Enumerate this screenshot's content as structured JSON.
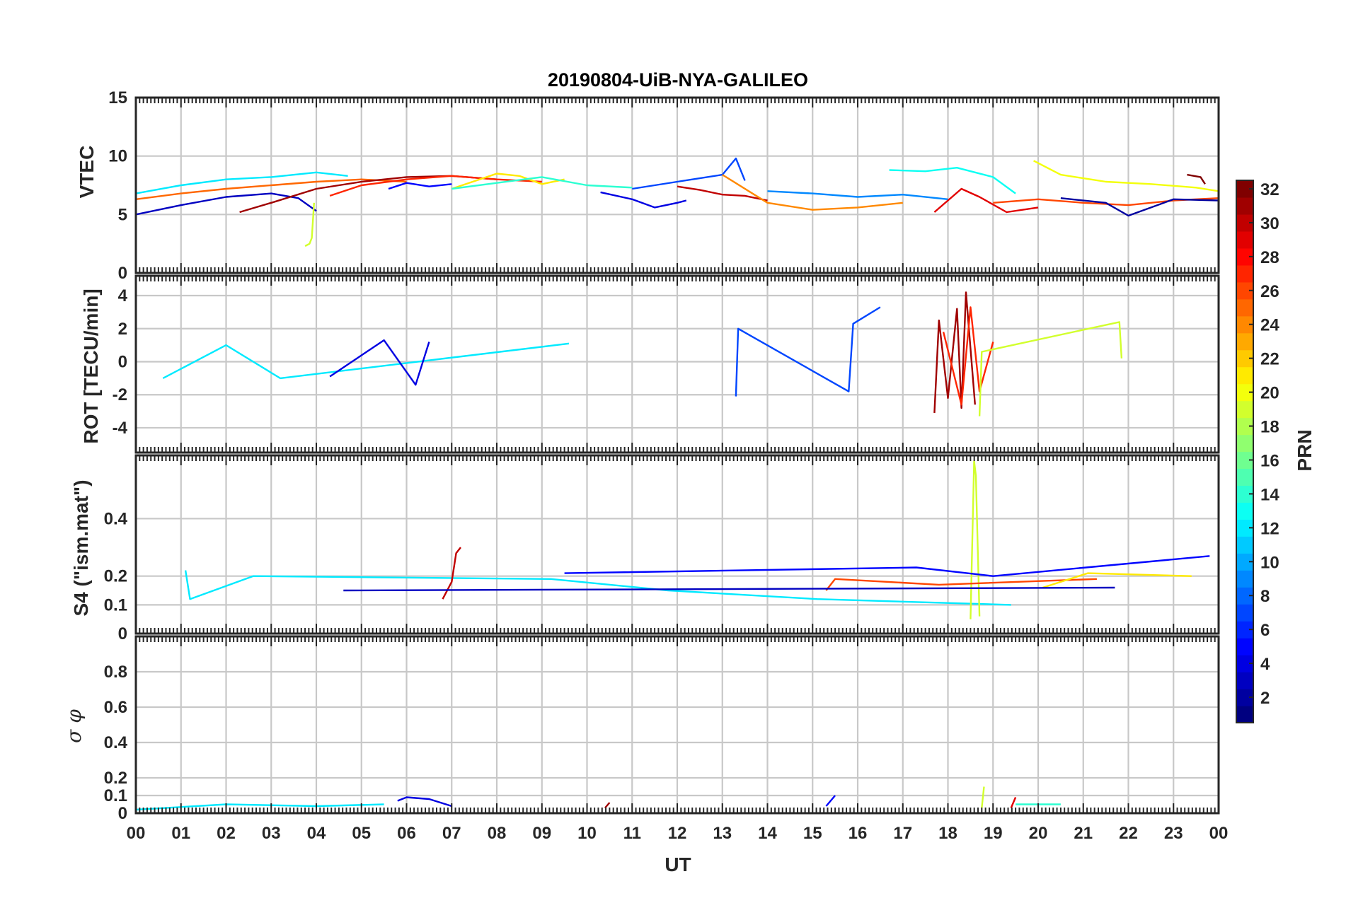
{
  "chart_data": {
    "type": "line",
    "title": "20190804-UiB-NYA-GALILEO",
    "xlabel": "UT",
    "x_tick_labels": [
      "00",
      "01",
      "02",
      "03",
      "04",
      "05",
      "06",
      "07",
      "08",
      "09",
      "10",
      "11",
      "12",
      "13",
      "14",
      "15",
      "16",
      "17",
      "18",
      "19",
      "20",
      "21",
      "22",
      "23",
      "00"
    ],
    "xlim_hours": [
      0,
      24
    ],
    "colorbar": {
      "label": "PRN",
      "colormap": "jet",
      "range": [
        1,
        32
      ],
      "tick_labels": [
        "2",
        "4",
        "6",
        "8",
        "10",
        "12",
        "14",
        "16",
        "18",
        "20",
        "22",
        "24",
        "26",
        "28",
        "30",
        "32"
      ]
    },
    "panels": [
      {
        "name": "vtec",
        "ylabel": "VTEC",
        "ylim": [
          0,
          15
        ],
        "yticks": [
          0,
          5,
          10,
          15
        ],
        "ytick_labels": [
          "0",
          "5",
          "10",
          "15"
        ],
        "series": [
          {
            "prn": 3,
            "t": [
              0,
              1,
              2,
              3,
              3.6,
              4.0
            ],
            "y": [
              5.0,
              5.8,
              6.5,
              6.8,
              6.4,
              5.3
            ]
          },
          {
            "prn": 12,
            "t": [
              0,
              1,
              2,
              3,
              4,
              4.7
            ],
            "y": [
              6.8,
              7.5,
              8.0,
              8.2,
              8.6,
              8.3
            ]
          },
          {
            "prn": 25,
            "t": [
              0,
              1,
              2,
              3,
              4,
              5,
              6
            ],
            "y": [
              6.3,
              6.8,
              7.2,
              7.5,
              7.8,
              8.0,
              7.8
            ]
          },
          {
            "prn": 31,
            "t": [
              2.3,
              3,
              4,
              5,
              6,
              7,
              8
            ],
            "y": [
              5.2,
              6.0,
              7.2,
              7.8,
              8.2,
              8.3,
              8.0
            ]
          },
          {
            "prn": 19,
            "t": [
              3.75,
              3.85,
              3.9,
              3.95
            ],
            "y": [
              2.3,
              2.5,
              3.0,
              6.0
            ]
          },
          {
            "prn": 27,
            "t": [
              4.3,
              5,
              6,
              7,
              8,
              9
            ],
            "y": [
              6.6,
              7.5,
              8.0,
              8.3,
              8.0,
              7.8
            ]
          },
          {
            "prn": 5,
            "t": [
              5.6,
              6,
              6.5,
              7
            ],
            "y": [
              7.2,
              7.7,
              7.4,
              7.6
            ]
          },
          {
            "prn": 21,
            "t": [
              7,
              8,
              8.5,
              9,
              9.5
            ],
            "y": [
              7.2,
              8.5,
              8.3,
              7.6,
              8.0
            ]
          },
          {
            "prn": 14,
            "t": [
              7,
              8,
              9,
              10,
              11
            ],
            "y": [
              7.2,
              7.7,
              8.2,
              7.5,
              7.3
            ]
          },
          {
            "prn": 4,
            "t": [
              10.3,
              11,
              11.5,
              12,
              12.2
            ],
            "y": [
              6.9,
              6.3,
              5.6,
              6.0,
              6.2
            ]
          },
          {
            "prn": 7,
            "t": [
              11,
              12,
              13,
              13.3,
              13.5
            ],
            "y": [
              7.2,
              7.8,
              8.4,
              9.8,
              7.9
            ]
          },
          {
            "prn": 30,
            "t": [
              12,
              12.5,
              13,
              13.5,
              14
            ],
            "y": [
              7.4,
              7.1,
              6.7,
              6.6,
              6.2
            ]
          },
          {
            "prn": 24,
            "t": [
              13,
              14,
              15,
              16,
              17
            ],
            "y": [
              8.4,
              6.0,
              5.4,
              5.6,
              6.0
            ]
          },
          {
            "prn": 9,
            "t": [
              14,
              15,
              16,
              17,
              18
            ],
            "y": [
              7.0,
              6.8,
              6.5,
              6.7,
              6.3
            ]
          },
          {
            "prn": 13,
            "t": [
              16.7,
              17.5,
              18.2,
              19,
              19.5
            ],
            "y": [
              8.8,
              8.7,
              9.0,
              8.2,
              6.8
            ]
          },
          {
            "prn": 29,
            "t": [
              17.7,
              18.3,
              18.7,
              19.3,
              20
            ],
            "y": [
              5.2,
              7.2,
              6.5,
              5.2,
              5.6
            ]
          },
          {
            "prn": 20,
            "t": [
              19.9,
              20.5,
              21.5,
              22.5,
              23.5,
              24
            ],
            "y": [
              9.6,
              8.4,
              7.8,
              7.6,
              7.3,
              7.0
            ]
          },
          {
            "prn": 26,
            "t": [
              19,
              20,
              21,
              22,
              23,
              24
            ],
            "y": [
              6.0,
              6.3,
              6.0,
              5.8,
              6.2,
              6.4
            ]
          },
          {
            "prn": 2,
            "t": [
              20.5,
              21.5,
              22,
              23,
              24
            ],
            "y": [
              6.4,
              6.0,
              4.9,
              6.3,
              6.2
            ]
          },
          {
            "prn": 32,
            "t": [
              23.3,
              23.6,
              23.7
            ],
            "y": [
              8.4,
              8.2,
              7.6
            ]
          }
        ]
      },
      {
        "name": "rot",
        "ylabel": "ROT [TECU/min]",
        "ylim": [
          -5.5,
          5.2
        ],
        "yticks": [
          -4,
          -2,
          0,
          2,
          4
        ],
        "ytick_labels": [
          "-4",
          "-2",
          "0",
          "2",
          "4"
        ],
        "series": [
          {
            "prn": 31,
            "t": [
              17.7,
              17.8,
              18.0,
              18.2,
              18.3,
              18.4,
              18.6
            ],
            "y": [
              -3.1,
              2.5,
              -2.2,
              3.2,
              -2.8,
              4.2,
              -2.6
            ]
          },
          {
            "prn": 27,
            "t": [
              17.9,
              18.3,
              18.5,
              18.7,
              19.0
            ],
            "y": [
              1.8,
              -2.6,
              3.3,
              -1.8,
              1.2
            ]
          },
          {
            "prn": 19,
            "t": [
              18.7,
              18.75,
              21.8,
              21.85
            ],
            "y": [
              -3.3,
              0.6,
              2.4,
              0.2
            ]
          },
          {
            "prn": 7,
            "t": [
              13.3,
              13.35,
              15.8,
              15.9,
              16.5
            ],
            "y": [
              -2.1,
              2.0,
              -1.8,
              2.3,
              3.3
            ]
          },
          {
            "prn": 12,
            "t": [
              0.6,
              2.0,
              3.2,
              9.6
            ],
            "y": [
              -1.0,
              1.0,
              -1.0,
              1.1
            ]
          },
          {
            "prn": 4,
            "t": [
              4.3,
              5.5,
              6.2,
              6.5
            ],
            "y": [
              -0.9,
              1.3,
              -1.4,
              1.2
            ]
          }
        ]
      },
      {
        "name": "s4",
        "ylabel": "S4 (\"ism.mat\")",
        "ylim": [
          0,
          0.62
        ],
        "yticks": [
          0,
          0.1,
          0.2,
          0.4
        ],
        "ytick_labels": [
          "0",
          "0.1",
          "0.2",
          "0.4"
        ],
        "series": [
          {
            "prn": 12,
            "t": [
              1.1,
              1.2,
              2.6,
              9.2,
              11.8,
              15.1,
              19.4
            ],
            "y": [
              0.22,
              0.12,
              0.2,
              0.19,
              0.15,
              0.12,
              0.1
            ]
          },
          {
            "prn": 30,
            "t": [
              6.8,
              7.0,
              7.1,
              7.2
            ],
            "y": [
              0.12,
              0.18,
              0.28,
              0.3
            ]
          },
          {
            "prn": 19,
            "t": [
              18.5,
              18.58,
              18.62,
              18.7
            ],
            "y": [
              0.05,
              0.6,
              0.55,
              0.06
            ]
          },
          {
            "prn": 5,
            "t": [
              9.5,
              13.4,
              17.3,
              19.0,
              23.8
            ],
            "y": [
              0.21,
              0.22,
              0.23,
              0.2,
              0.27
            ]
          },
          {
            "prn": 26,
            "t": [
              15.3,
              15.5,
              17.8,
              21.3
            ],
            "y": [
              0.15,
              0.19,
              0.17,
              0.19
            ]
          },
          {
            "prn": 21,
            "t": [
              20.1,
              21.1,
              23.4
            ],
            "y": [
              0.16,
              0.21,
              0.2
            ]
          },
          {
            "prn": 3,
            "t": [
              4.6,
              21.7
            ],
            "y": [
              0.15,
              0.16
            ]
          }
        ]
      },
      {
        "name": "sigma-phi",
        "ylabel": "σ φ",
        "ylim": [
          0,
          1.0
        ],
        "yticks": [
          0,
          0.1,
          0.2,
          0.4,
          0.6,
          0.8
        ],
        "ytick_labels": [
          "0",
          "0.1",
          "0.2",
          "0.4",
          "0.6",
          "0.8"
        ],
        "series": [
          {
            "prn": 12,
            "t": [
              0,
              2,
              4,
              5.5
            ],
            "y": [
              0.02,
              0.05,
              0.04,
              0.05
            ]
          },
          {
            "prn": 4,
            "t": [
              5.8,
              6.0,
              6.5,
              7.0
            ],
            "y": [
              0.07,
              0.09,
              0.08,
              0.04
            ]
          },
          {
            "prn": 31,
            "t": [
              10.4,
              10.5
            ],
            "y": [
              0.03,
              0.06
            ]
          },
          {
            "prn": 5,
            "t": [
              15.3,
              15.5
            ],
            "y": [
              0.04,
              0.1
            ]
          },
          {
            "prn": 19,
            "t": [
              18.75,
              18.8
            ],
            "y": [
              0.03,
              0.15
            ]
          },
          {
            "prn": 29,
            "t": [
              19.4,
              19.5
            ],
            "y": [
              0.03,
              0.09
            ]
          },
          {
            "prn": 14,
            "t": [
              19.5,
              20.5
            ],
            "y": [
              0.05,
              0.05
            ]
          }
        ]
      }
    ]
  }
}
